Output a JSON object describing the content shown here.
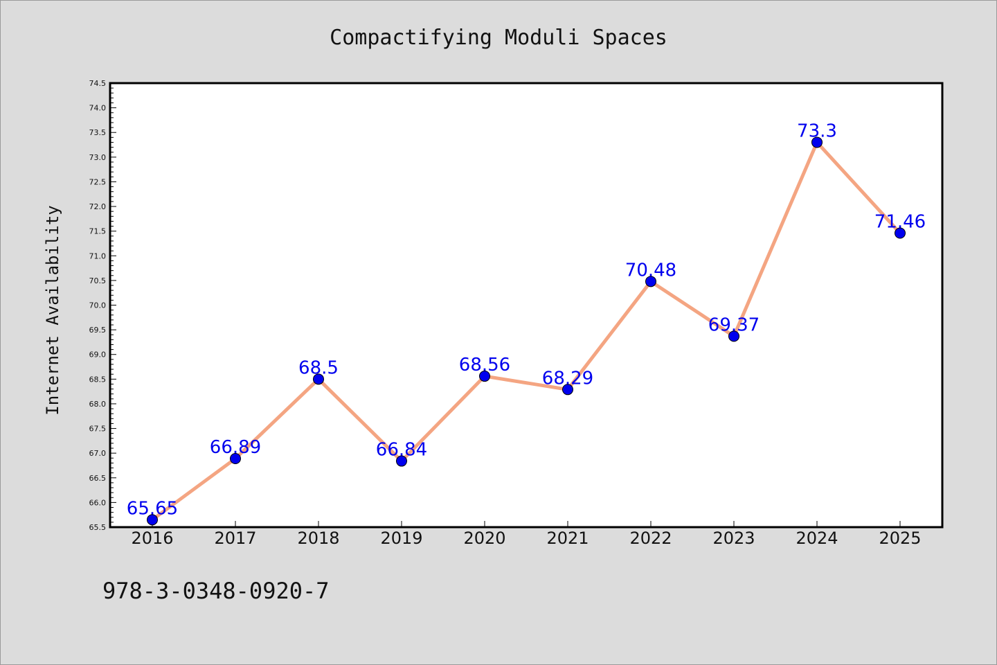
{
  "chart_data": {
    "type": "line",
    "title": "Compactifying Moduli Spaces",
    "xlabel": "",
    "ylabel": "Internet Availability",
    "categories": [
      "2016",
      "2017",
      "2018",
      "2019",
      "2020",
      "2021",
      "2022",
      "2023",
      "2024",
      "2025"
    ],
    "series": [
      {
        "values": [
          65.65,
          66.89,
          68.5,
          66.84,
          68.56,
          68.29,
          70.48,
          69.37,
          73.3,
          71.46
        ],
        "labels": [
          "65.65",
          "66.89",
          "68.5",
          "66.84",
          "68.56",
          "68.29",
          "70.48",
          "69.37",
          "73.3",
          "71.46"
        ]
      }
    ],
    "ylim": [
      65.5,
      74.5
    ],
    "yticks": [
      "65.5",
      "66.0",
      "66.5",
      "67.0",
      "67.5",
      "68.0",
      "68.5",
      "69.0",
      "69.5",
      "70.0",
      "70.5",
      "71.0",
      "71.5",
      "72.0",
      "72.5",
      "73.0",
      "73.5",
      "74.0",
      "74.5"
    ],
    "grid": false,
    "legend": "none",
    "colors": {
      "line": "#f4a582",
      "marker": "#0000ee",
      "label": "#0000ee",
      "background": "#dcdcdc",
      "plot_background": "#ffffff"
    }
  },
  "footer": {
    "isbn": "978-3-0348-0920-7"
  }
}
